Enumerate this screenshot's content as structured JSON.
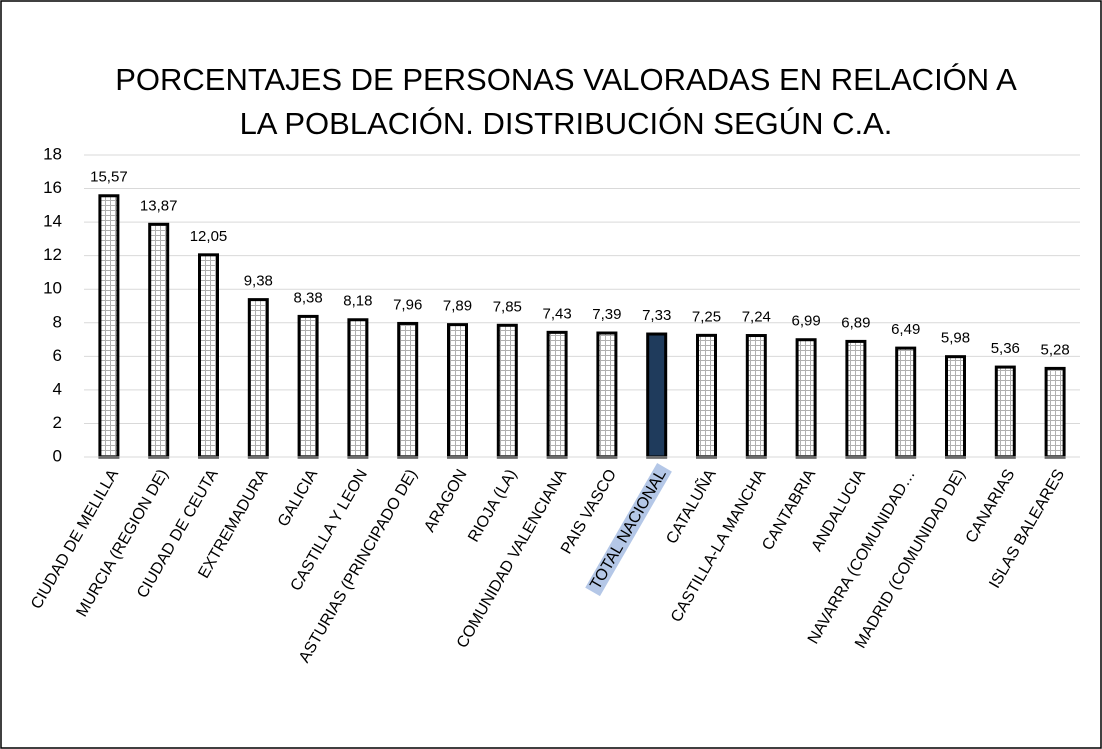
{
  "chart_data": {
    "type": "bar",
    "title": [
      "PORCENTAJES DE PERSONAS VALORADAS EN RELACIÓN A",
      "LA POBLACIÓN. DISTRIBUCIÓN SEGÚN C.A."
    ],
    "categories": [
      "CIUDAD DE MELILLA",
      "MURCIA (REGION DE)",
      "CIUDAD DE CEUTA",
      "EXTREMADURA",
      "GALICIA",
      "CASTILLA Y LEON",
      "ASTURIAS (PRINCIPADO DE)",
      "ARAGON",
      "RIOJA (LA)",
      "COMUNIDAD VALENCIANA",
      "PAIS VASCO",
      "TOTAL NACIONAL",
      "CATALUÑA",
      "CASTILLA-LA MANCHA",
      "CANTABRIA",
      "ANDALUCIA",
      "NAVARRA (COMUNIDAD…",
      "MADRID (COMUNIDAD DE)",
      "CANARIAS",
      "ISLAS BALEARES"
    ],
    "values": [
      15.57,
      13.87,
      12.05,
      9.38,
      8.38,
      8.18,
      7.96,
      7.89,
      7.85,
      7.43,
      7.39,
      7.33,
      7.25,
      7.24,
      6.99,
      6.89,
      6.49,
      5.98,
      5.36,
      5.28
    ],
    "value_labels": [
      "15,57",
      "13,87",
      "12,05",
      "9,38",
      "8,38",
      "8,18",
      "7,96",
      "7,89",
      "7,85",
      "7,43",
      "7,39",
      "7,33",
      "7,25",
      "7,24",
      "6,99",
      "6,89",
      "6,49",
      "5,98",
      "5,36",
      "5,28"
    ],
    "color": "#d9d9d9",
    "highlight": {
      "index": 11,
      "color": "#1f3b5c",
      "label_color": "#b4c7e7"
    },
    "ylim": [
      0,
      18
    ],
    "yticks": [
      0,
      2,
      4,
      6,
      8,
      10,
      12,
      14,
      16,
      18
    ],
    "grid": true
  }
}
